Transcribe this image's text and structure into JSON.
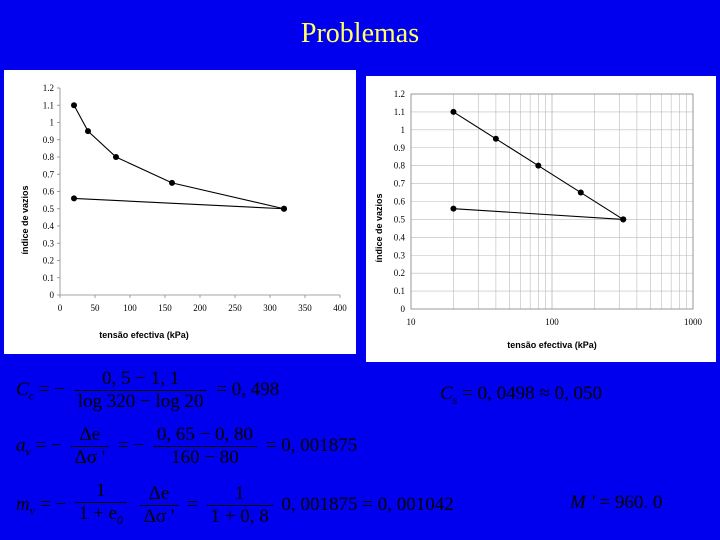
{
  "slide": {
    "title": "Problemas"
  },
  "chart_data": [
    {
      "type": "scatter",
      "xlabel": "tensão efectiva (kPa)",
      "ylabel": "índice de vazios",
      "xlim": [
        0,
        400
      ],
      "ylim": [
        0,
        1.2
      ],
      "x_ticks": [
        "0",
        "50",
        "100",
        "150",
        "200",
        "250",
        "300",
        "350",
        "400"
      ],
      "y_ticks": [
        "0",
        "0.1",
        "0.2",
        "0.3",
        "0.4",
        "0.5",
        "0.6",
        "0.7",
        "0.8",
        "0.9",
        "1",
        "1.1",
        "1.2"
      ],
      "x_scale": "linear",
      "grid": false,
      "series": [
        {
          "x": [
            20,
            40,
            80,
            160,
            320
          ],
          "y": [
            1.1,
            0.95,
            0.8,
            0.65,
            0.5
          ]
        },
        {
          "x": [
            20,
            320
          ],
          "y": [
            0.56,
            0.5
          ]
        }
      ]
    },
    {
      "type": "scatter",
      "xlabel": "tensão efectiva (kPa)",
      "ylabel": "índice de vazios",
      "xlim": [
        10,
        1000
      ],
      "ylim": [
        0,
        1.2
      ],
      "x_ticks": [
        "10",
        "100",
        "1000"
      ],
      "y_ticks": [
        "0",
        "0.1",
        "0.2",
        "0.3",
        "0.4",
        "0.5",
        "0.6",
        "0.7",
        "0.8",
        "0.9",
        "1",
        "1.1",
        "1.2"
      ],
      "x_scale": "log",
      "grid": true,
      "series": [
        {
          "x": [
            20,
            40,
            80,
            160,
            320
          ],
          "y": [
            1.1,
            0.95,
            0.8,
            0.65,
            0.5
          ]
        },
        {
          "x": [
            20,
            320
          ],
          "y": [
            0.56,
            0.5
          ]
        }
      ]
    }
  ],
  "equations": {
    "cc": {
      "lhs": "C",
      "lhs_sub": "c",
      "eq": "= −",
      "num": "0, 5 − 1, 1",
      "den": "log 320 − log 20",
      "result": "= 0, 498"
    },
    "cs": {
      "lhs": "C",
      "lhs_sub": "s",
      "rhs": "= 0, 0498 ≈ 0, 050"
    },
    "av": {
      "lhs": "a",
      "lhs_sub": "v",
      "eq": "= −",
      "num1": "Δe",
      "den1": "Δσ '",
      "eq2": "= −",
      "num2": "0, 65 − 0, 80",
      "den2": "160 − 80",
      "result": "= 0, 001875"
    },
    "mv": {
      "lhs": "m",
      "lhs_sub": "v",
      "eq": "= −",
      "num1": "1",
      "den1": "1 + e",
      "den1_sub": "0",
      "num2": "Δe",
      "den2": "Δσ '",
      "eq2": "=",
      "num3": "1",
      "den3": "1 + 0, 8",
      "result": "0, 001875 = 0, 001042"
    },
    "mod": {
      "lhs": "M '",
      "rhs": "= 960. 0"
    }
  }
}
